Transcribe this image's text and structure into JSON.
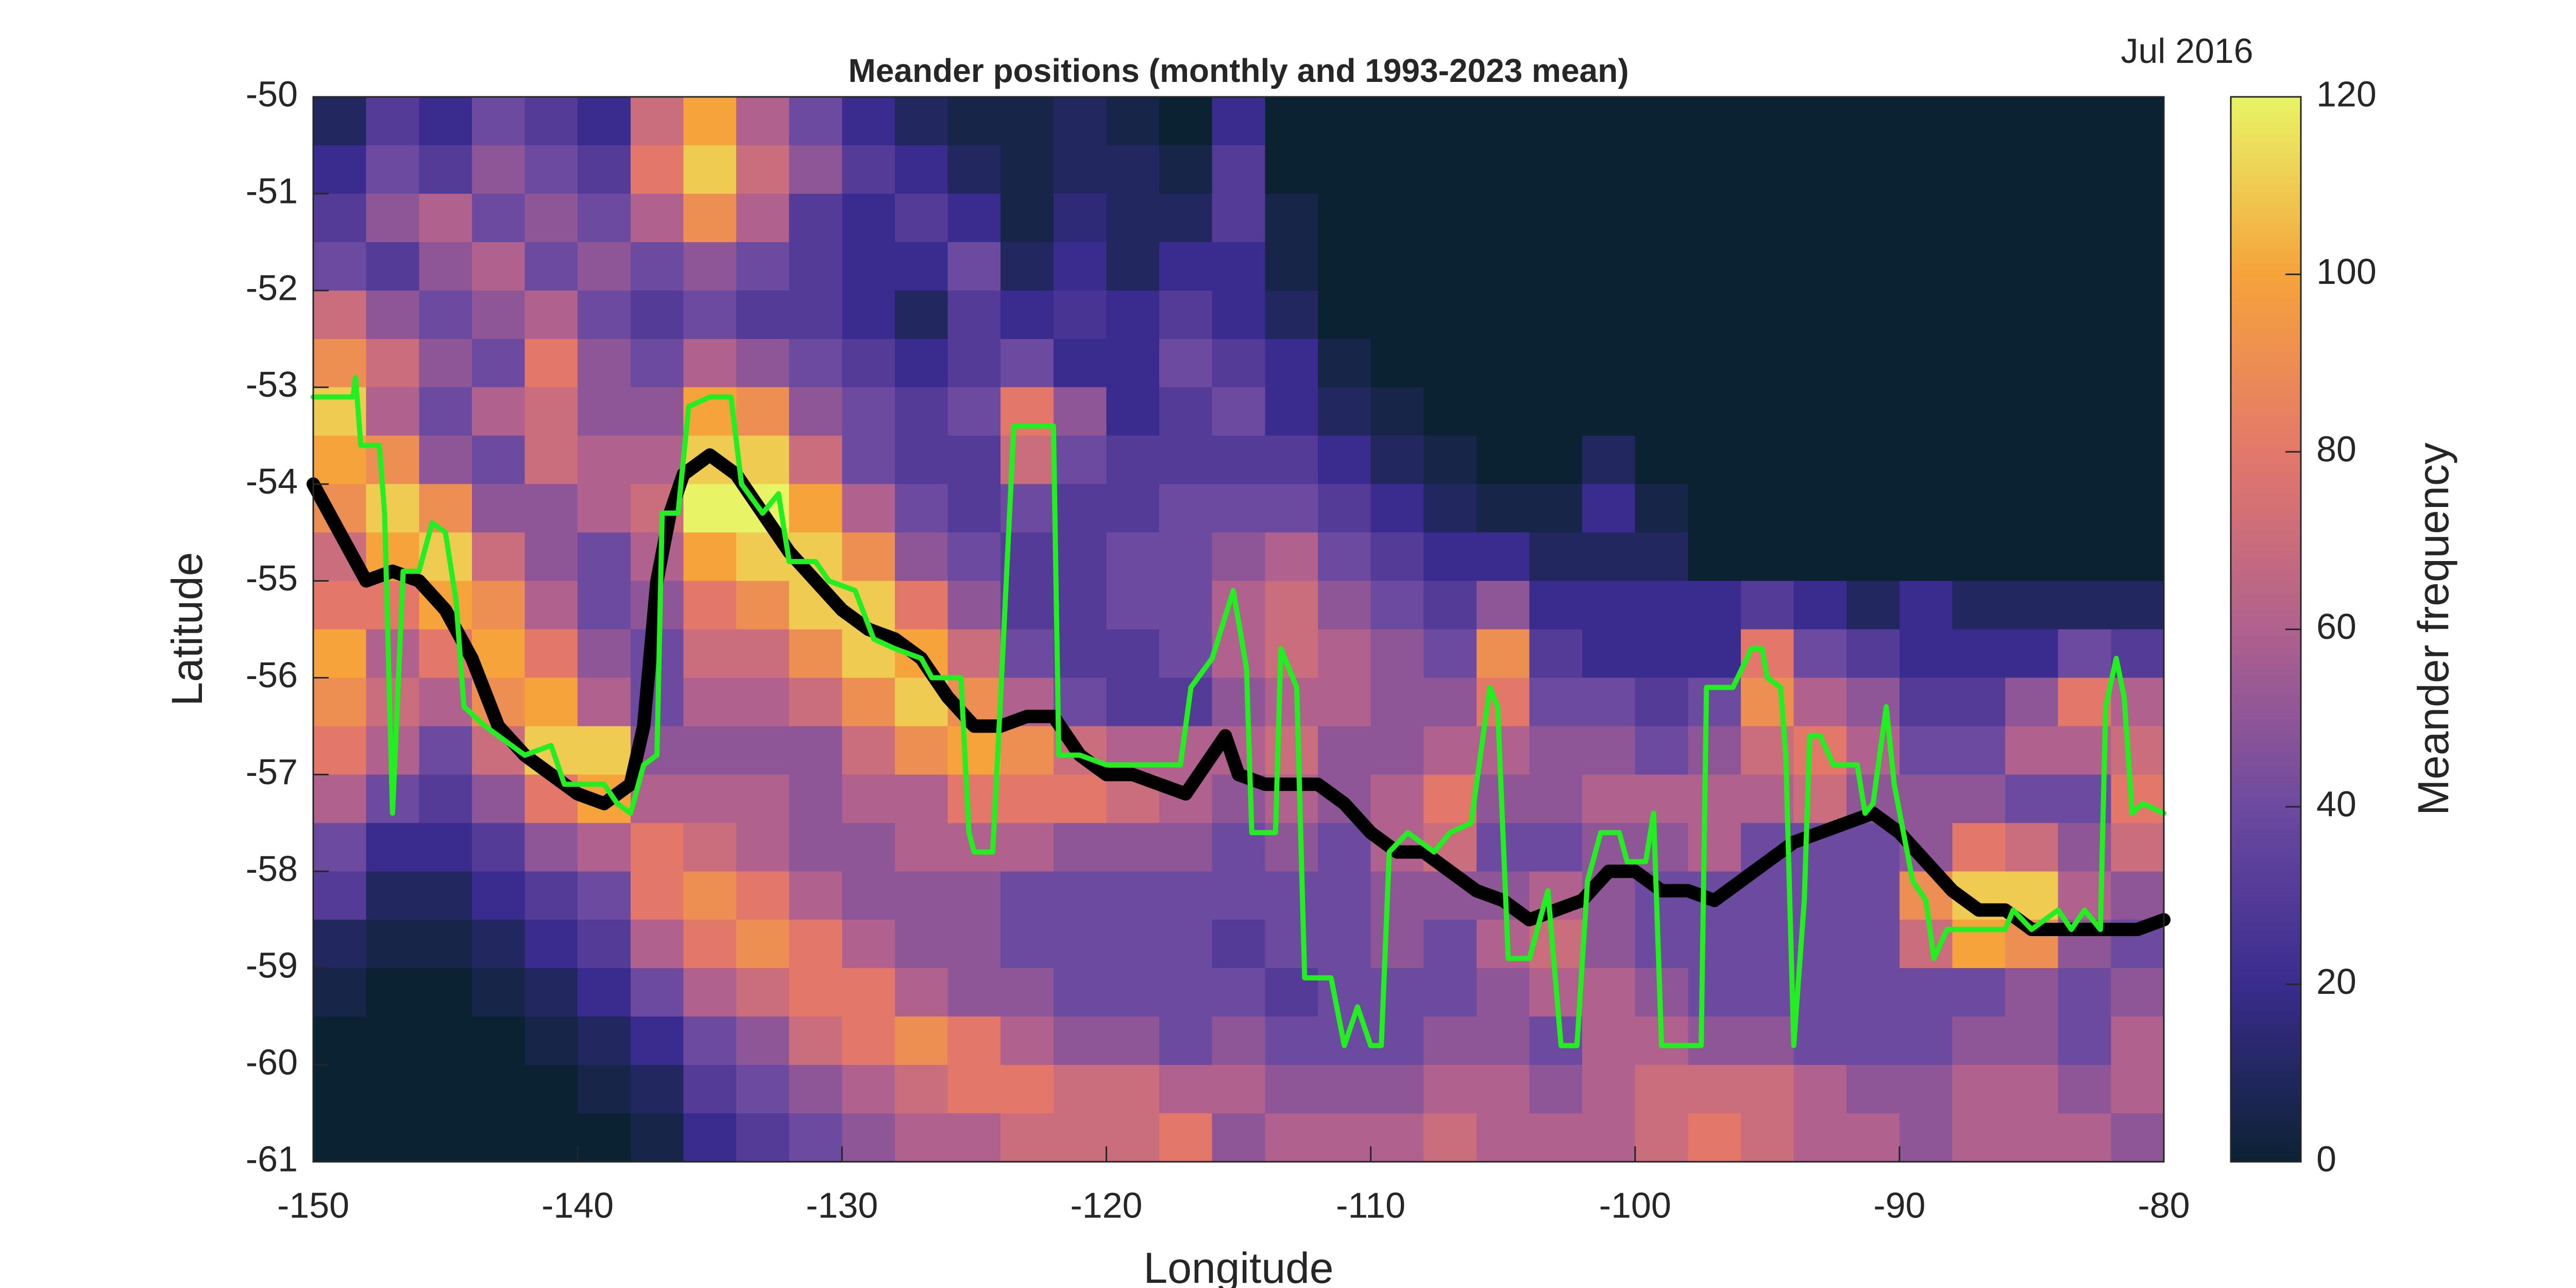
{
  "chart_data": {
    "type": "heatmap",
    "title": "Meander positions (monthly and 1993-2023 mean)",
    "annotation": "Jul 2016",
    "x_label": "Longitude",
    "y_label": "Latitude",
    "xlim": [
      -150,
      -80
    ],
    "xticks": [
      -150,
      -140,
      -130,
      -120,
      -110,
      -100,
      -90,
      -80
    ],
    "ylim": [
      -61,
      -50
    ],
    "yticks": [
      -50,
      -51,
      -52,
      -53,
      -54,
      -55,
      -56,
      -57,
      -58,
      -59,
      -60,
      -61
    ],
    "heatmap": {
      "xbins": [
        -150,
        -148,
        -146,
        -144,
        -142,
        -140,
        -138,
        -136,
        -134,
        -132,
        -130,
        -128,
        -126,
        -124,
        -122,
        -120,
        -118,
        -116,
        -114,
        -112,
        -110,
        -108,
        -106,
        -104,
        -102,
        -100,
        -98,
        -96,
        -94,
        -92,
        -90,
        -88,
        -86,
        -84,
        -82,
        -80
      ],
      "ybins": [
        -50,
        -50.5,
        -51,
        -51.5,
        -52,
        -52.5,
        -53,
        -53.5,
        -54,
        -54.5,
        -55,
        -55.5,
        -56,
        -56.5,
        -57,
        -57.5,
        -58,
        -58.5,
        -59,
        -59.5,
        -60,
        -60.5,
        -61
      ],
      "z": [
        [
          10,
          30,
          20,
          40,
          30,
          20,
          70,
          100,
          60,
          40,
          20,
          10,
          5,
          5,
          10,
          5,
          0,
          20,
          0,
          0,
          0,
          0,
          0,
          0,
          0,
          0,
          0,
          0,
          0,
          0,
          0,
          0,
          0,
          0,
          0
        ],
        [
          20,
          40,
          30,
          50,
          40,
          30,
          80,
          110,
          70,
          50,
          30,
          20,
          10,
          5,
          10,
          10,
          5,
          30,
          0,
          0,
          0,
          0,
          0,
          0,
          0,
          0,
          0,
          0,
          0,
          0,
          0,
          0,
          0,
          0,
          0
        ],
        [
          30,
          50,
          60,
          40,
          50,
          40,
          60,
          90,
          60,
          30,
          20,
          30,
          20,
          5,
          15,
          10,
          10,
          30,
          5,
          0,
          0,
          0,
          0,
          0,
          0,
          0,
          0,
          0,
          0,
          0,
          0,
          0,
          0,
          0,
          0
        ],
        [
          40,
          30,
          50,
          60,
          40,
          50,
          40,
          50,
          40,
          30,
          20,
          20,
          40,
          10,
          20,
          10,
          20,
          20,
          5,
          0,
          0,
          0,
          0,
          0,
          0,
          0,
          0,
          0,
          0,
          0,
          0,
          0,
          0,
          0,
          0
        ],
        [
          70,
          50,
          40,
          50,
          60,
          40,
          30,
          40,
          30,
          30,
          20,
          10,
          30,
          20,
          25,
          20,
          30,
          20,
          10,
          0,
          0,
          0,
          0,
          0,
          0,
          0,
          0,
          0,
          0,
          0,
          0,
          0,
          0,
          0,
          0
        ],
        [
          90,
          70,
          50,
          40,
          80,
          50,
          40,
          60,
          50,
          40,
          30,
          20,
          30,
          40,
          20,
          20,
          40,
          30,
          20,
          5,
          0,
          0,
          0,
          0,
          0,
          0,
          0,
          0,
          0,
          0,
          0,
          0,
          0,
          0,
          0
        ],
        [
          110,
          60,
          40,
          60,
          70,
          50,
          50,
          100,
          90,
          50,
          40,
          30,
          40,
          80,
          50,
          20,
          30,
          40,
          20,
          10,
          5,
          0,
          0,
          0,
          0,
          0,
          0,
          0,
          0,
          0,
          0,
          0,
          0,
          0,
          0
        ],
        [
          100,
          90,
          50,
          40,
          70,
          60,
          60,
          110,
          110,
          70,
          40,
          30,
          30,
          70,
          40,
          30,
          30,
          30,
          30,
          20,
          10,
          5,
          0,
          0,
          10,
          0,
          0,
          0,
          0,
          0,
          0,
          0,
          0,
          0,
          0
        ],
        [
          90,
          110,
          90,
          50,
          50,
          60,
          70,
          120,
          120,
          100,
          60,
          40,
          30,
          40,
          30,
          30,
          40,
          40,
          40,
          30,
          20,
          10,
          5,
          5,
          20,
          5,
          0,
          0,
          0,
          0,
          0,
          0,
          0,
          0,
          0
        ],
        [
          70,
          100,
          110,
          70,
          50,
          40,
          60,
          100,
          110,
          110,
          90,
          50,
          40,
          30,
          30,
          40,
          40,
          50,
          60,
          40,
          30,
          20,
          20,
          10,
          10,
          10,
          0,
          0,
          0,
          0,
          0,
          0,
          0,
          0,
          0
        ],
        [
          80,
          80,
          100,
          90,
          60,
          40,
          50,
          80,
          90,
          110,
          110,
          80,
          50,
          30,
          30,
          40,
          40,
          60,
          70,
          50,
          40,
          30,
          50,
          20,
          20,
          20,
          20,
          30,
          20,
          10,
          20,
          10,
          10,
          10,
          10
        ],
        [
          100,
          60,
          80,
          100,
          80,
          50,
          40,
          70,
          70,
          90,
          110,
          100,
          70,
          40,
          30,
          30,
          40,
          60,
          70,
          60,
          50,
          40,
          90,
          30,
          20,
          20,
          20,
          80,
          40,
          30,
          20,
          20,
          20,
          40,
          30
        ],
        [
          90,
          70,
          60,
          90,
          100,
          60,
          40,
          60,
          60,
          70,
          90,
          110,
          90,
          60,
          40,
          30,
          30,
          50,
          60,
          60,
          50,
          50,
          80,
          40,
          40,
          30,
          40,
          90,
          60,
          50,
          30,
          30,
          50,
          80,
          60
        ],
        [
          80,
          60,
          40,
          70,
          110,
          110,
          50,
          50,
          50,
          50,
          70,
          90,
          100,
          90,
          70,
          60,
          60,
          60,
          70,
          50,
          50,
          60,
          60,
          50,
          50,
          40,
          50,
          70,
          80,
          60,
          40,
          40,
          60,
          60,
          70
        ],
        [
          60,
          40,
          30,
          50,
          80,
          100,
          60,
          60,
          60,
          50,
          60,
          60,
          80,
          80,
          80,
          70,
          60,
          50,
          60,
          50,
          60,
          80,
          50,
          50,
          60,
          60,
          60,
          60,
          70,
          50,
          50,
          50,
          40,
          40,
          80
        ],
        [
          40,
          20,
          20,
          30,
          50,
          60,
          80,
          70,
          60,
          50,
          50,
          60,
          60,
          60,
          50,
          50,
          50,
          40,
          50,
          40,
          60,
          70,
          40,
          40,
          50,
          50,
          60,
          40,
          40,
          40,
          50,
          80,
          70,
          50,
          70
        ],
        [
          30,
          10,
          10,
          20,
          30,
          40,
          80,
          90,
          80,
          60,
          50,
          50,
          50,
          40,
          40,
          40,
          40,
          40,
          40,
          40,
          50,
          50,
          50,
          60,
          50,
          40,
          40,
          40,
          40,
          40,
          90,
          110,
          110,
          60,
          50
        ],
        [
          10,
          5,
          5,
          10,
          20,
          30,
          60,
          80,
          90,
          80,
          60,
          50,
          50,
          40,
          40,
          40,
          40,
          30,
          40,
          40,
          50,
          40,
          60,
          70,
          50,
          40,
          40,
          40,
          40,
          40,
          70,
          100,
          90,
          50,
          40
        ],
        [
          5,
          0,
          0,
          5,
          10,
          20,
          40,
          60,
          70,
          80,
          80,
          60,
          50,
          50,
          40,
          40,
          40,
          40,
          30,
          40,
          40,
          40,
          50,
          60,
          60,
          50,
          40,
          40,
          40,
          40,
          40,
          40,
          50,
          40,
          50
        ],
        [
          0,
          0,
          0,
          0,
          5,
          10,
          20,
          40,
          50,
          70,
          80,
          90,
          80,
          60,
          50,
          50,
          40,
          50,
          40,
          40,
          40,
          50,
          50,
          40,
          60,
          60,
          50,
          50,
          40,
          40,
          40,
          50,
          50,
          40,
          60
        ],
        [
          0,
          0,
          0,
          0,
          0,
          5,
          10,
          30,
          40,
          50,
          60,
          70,
          80,
          80,
          70,
          70,
          60,
          60,
          50,
          50,
          50,
          60,
          60,
          50,
          60,
          70,
          70,
          70,
          60,
          50,
          50,
          60,
          60,
          50,
          60
        ],
        [
          0,
          0,
          0,
          0,
          0,
          0,
          5,
          20,
          30,
          40,
          50,
          60,
          60,
          70,
          70,
          70,
          80,
          50,
          60,
          60,
          60,
          70,
          60,
          60,
          60,
          70,
          80,
          70,
          60,
          60,
          50,
          60,
          60,
          60,
          50
        ]
      ]
    },
    "colorbar": {
      "label": "Meander frequency",
      "lim": [
        0,
        120
      ],
      "ticks": [
        0,
        20,
        40,
        60,
        80,
        100,
        120
      ],
      "colormap": [
        "#0b2232",
        "#3a2c8e",
        "#6c4aa0",
        "#b0618e",
        "#e3786a",
        "#f6a33c",
        "#e8f466"
      ]
    },
    "series": [
      {
        "color": "#000000",
        "x": [
          -150,
          -149,
          -148,
          -147,
          -146,
          -145,
          -144,
          -143,
          -142,
          -141,
          -140,
          -139,
          -138,
          -137.5,
          -137,
          -136.5,
          -136,
          -135,
          -134,
          -133,
          -132,
          -131,
          -130,
          -129,
          -128,
          -127,
          -126,
          -125,
          -124,
          -123,
          -122,
          -121,
          -120,
          -119,
          -118,
          -117,
          -116,
          -115.5,
          -115,
          -114,
          -113,
          -112,
          -111,
          -110,
          -109,
          -108,
          -107,
          -106,
          -105,
          -104,
          -103,
          -102,
          -101,
          -100,
          -99,
          -98,
          -97,
          -96,
          -95,
          -94,
          -93,
          -92,
          -91,
          -90,
          -89,
          -88,
          -87,
          -86,
          -85,
          -84,
          -83,
          -82,
          -81,
          -80
        ],
        "values": [
          -54,
          -54.5,
          -55,
          -54.9,
          -55,
          -55.3,
          -55.8,
          -56.5,
          -56.8,
          -57,
          -57.2,
          -57.3,
          -57.1,
          -56.5,
          -55,
          -54.3,
          -53.9,
          -53.7,
          -53.9,
          -54.3,
          -54.7,
          -55,
          -55.3,
          -55.5,
          -55.6,
          -55.8,
          -56.2,
          -56.5,
          -56.5,
          -56.4,
          -56.4,
          -56.8,
          -57,
          -57,
          -57.1,
          -57.2,
          -56.8,
          -56.6,
          -57,
          -57.1,
          -57.1,
          -57.1,
          -57.3,
          -57.6,
          -57.8,
          -57.8,
          -58,
          -58.2,
          -58.3,
          -58.5,
          -58.4,
          -58.3,
          -58,
          -58,
          -58.2,
          -58.2,
          -58.3,
          -58.1,
          -57.9,
          -57.7,
          -57.6,
          -57.5,
          -57.4,
          -57.6,
          -57.9,
          -58.2,
          -58.4,
          -58.4,
          -58.6,
          -58.6,
          -58.6,
          -58.6,
          -58.6,
          -58.5
        ]
      },
      {
        "color": "#22ee22",
        "x": [
          -150,
          -148.5,
          -148.4,
          -148.2,
          -147.5,
          -147.3,
          -147,
          -146.6,
          -146,
          -145.5,
          -145,
          -144.6,
          -144.3,
          -143.5,
          -143,
          -142,
          -141,
          -140.5,
          -139,
          -138.5,
          -138,
          -137.5,
          -137,
          -136.8,
          -136.2,
          -135.8,
          -135,
          -134.2,
          -133.8,
          -133,
          -132.4,
          -132,
          -131,
          -130.5,
          -129.5,
          -128.8,
          -128,
          -127,
          -126.6,
          -125.5,
          -125.2,
          -125,
          -124.3,
          -124,
          -123.5,
          -122,
          -121.8,
          -121,
          -120,
          -118,
          -117.2,
          -116.8,
          -116,
          -115.2,
          -114.7,
          -114.5,
          -113.6,
          -113.4,
          -112.8,
          -112.5,
          -111.5,
          -111,
          -110.5,
          -110,
          -109.6,
          -109.3,
          -108.6,
          -107.6,
          -107,
          -106.2,
          -105.5,
          -105.2,
          -104.8,
          -104,
          -103.3,
          -102.8,
          -102.2,
          -101.8,
          -101.3,
          -100.6,
          -100.3,
          -99.6,
          -99.3,
          -99,
          -97.5,
          -97.3,
          -96.3,
          -95.6,
          -95.2,
          -95,
          -94.5,
          -94.3,
          -94,
          -93.6,
          -93.4,
          -93,
          -92.5,
          -91.6,
          -91.3,
          -91,
          -90.5,
          -90.2,
          -89.5,
          -89,
          -88.7,
          -88.2,
          -86,
          -85.7,
          -85,
          -84,
          -83.5,
          -83,
          -82.4,
          -82.2,
          -81.8,
          -81.5,
          -81.2,
          -80.8,
          -80
        ],
        "values": [
          -53.1,
          -53.1,
          -52.9,
          -53.6,
          -53.6,
          -54.3,
          -57.4,
          -54.9,
          -54.9,
          -54.4,
          -54.5,
          -55.2,
          -56.3,
          -56.5,
          -56.6,
          -56.8,
          -56.7,
          -57.1,
          -57.1,
          -57.3,
          -57.4,
          -56.9,
          -56.8,
          -54.3,
          -54.3,
          -53.2,
          -53.1,
          -53.1,
          -54,
          -54.3,
          -54.1,
          -54.8,
          -54.8,
          -55,
          -55.1,
          -55.6,
          -55.7,
          -55.8,
          -56,
          -56,
          -57.6,
          -57.8,
          -57.8,
          -56.2,
          -53.4,
          -53.4,
          -56.8,
          -56.8,
          -56.9,
          -56.9,
          -56.9,
          -56.1,
          -55.8,
          -55.1,
          -55.9,
          -57.6,
          -57.6,
          -55.7,
          -56.1,
          -59.1,
          -59.1,
          -59.8,
          -59.4,
          -59.8,
          -59.8,
          -57.8,
          -57.6,
          -57.8,
          -57.6,
          -57.5,
          -56.1,
          -56.3,
          -58.9,
          -58.9,
          -58.2,
          -59.8,
          -59.8,
          -58.1,
          -57.6,
          -57.6,
          -57.9,
          -57.9,
          -57.4,
          -59.8,
          -59.8,
          -56.1,
          -56.1,
          -55.7,
          -55.7,
          -56,
          -56.1,
          -56.8,
          -59.8,
          -58.3,
          -56.6,
          -56.6,
          -56.9,
          -56.9,
          -57.4,
          -57.3,
          -56.3,
          -57.1,
          -58.1,
          -58.3,
          -58.9,
          -58.6,
          -58.6,
          -58.4,
          -58.6,
          -58.4,
          -58.6,
          -58.4,
          -58.6,
          -56.3,
          -55.8,
          -56.2,
          -57.4,
          -57.3,
          -57.4
        ]
      }
    ]
  }
}
